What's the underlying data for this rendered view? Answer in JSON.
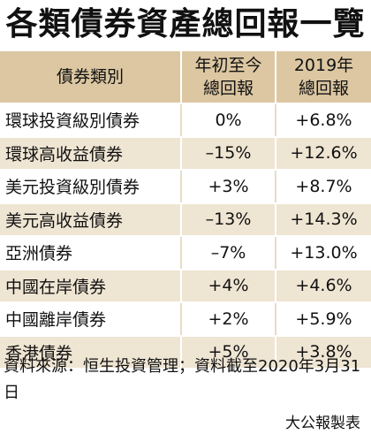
{
  "title": "各類債券資產總回報一覽",
  "header": {
    "col1": "債券類別",
    "col2_line1": "年初至今",
    "col2_line2": "總回報",
    "col3_line1": "2019年",
    "col3_line2": "總回報"
  },
  "rows": [
    {
      "category": "環球投資級別債券",
      "ytd": "0%",
      "y2019": "+6.8%"
    },
    {
      "category": "環球高收益債券",
      "ytd": "–15%",
      "y2019": "+12.6%"
    },
    {
      "category": "美元投資級別債券",
      "ytd": "+3%",
      "y2019": "+8.7%"
    },
    {
      "category": "美元高收益債券",
      "ytd": "–13%",
      "y2019": "+14.3%"
    },
    {
      "category": "亞洲債券",
      "ytd": "–7%",
      "y2019": "+13.0%"
    },
    {
      "category": "中國在岸債券",
      "ytd": "+4%",
      "y2019": "+4.6%"
    },
    {
      "category": "中國離岸債券",
      "ytd": "+2%",
      "y2019": "+5.9%"
    },
    {
      "category": "香港債券",
      "ytd": "+5%",
      "y2019": "+3.8%"
    }
  ],
  "source": "資料來源：恒生投資管理；資料截至2020年3月31日",
  "credit": "大公報製表",
  "colors": {
    "header_bg": "#dcc7a2",
    "row_alt_bg": "#efe5d3"
  }
}
